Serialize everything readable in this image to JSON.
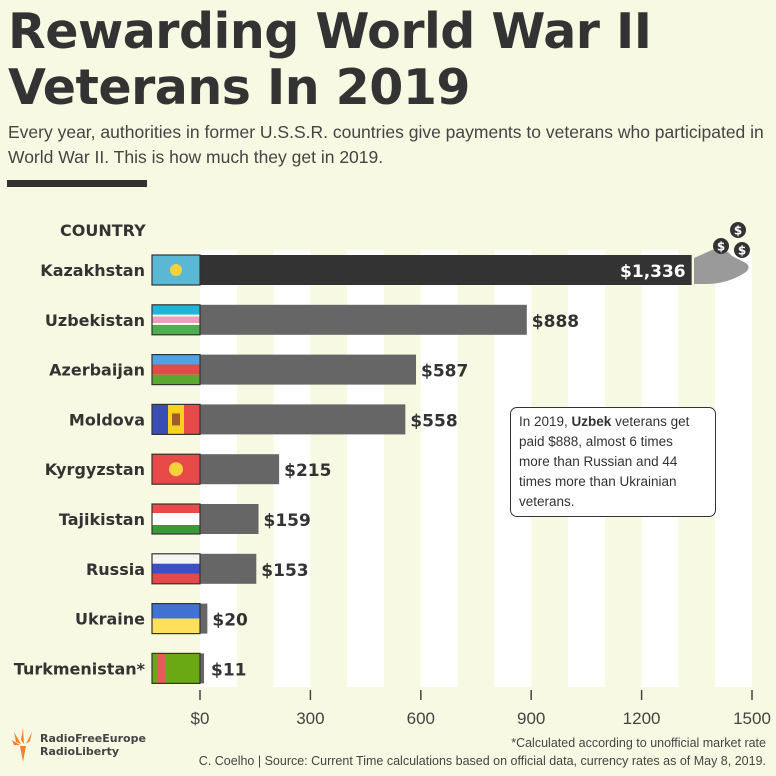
{
  "title": "Rewarding World War II Veterans In 2019",
  "subtitle": "Every year, authorities in former U.S.S.R. countries give payments to veterans who participated in World War II. This is how much they get in 2019.",
  "chart_data": {
    "type": "bar",
    "orientation": "horizontal",
    "column_header": "COUNTRY",
    "categories": [
      "Kazakhstan",
      "Uzbekistan",
      "Azerbaijan",
      "Moldova",
      "Kyrgyzstan",
      "Tajikistan",
      "Russia",
      "Ukraine",
      "Turkmenistan*"
    ],
    "values": [
      1336,
      888,
      587,
      558,
      215,
      159,
      153,
      20,
      11
    ],
    "value_labels": [
      "$1,336",
      "$888",
      "$587",
      "$558",
      "$215",
      "$159",
      "$153",
      "$20",
      "$11"
    ],
    "xlim": [
      0,
      1500
    ],
    "xticks": [
      0,
      300,
      600,
      900,
      1200,
      1500
    ],
    "xtick_labels": [
      "$0",
      "300",
      "600",
      "900",
      "1200",
      "1500"
    ],
    "highlight_color": "#333333",
    "bar_color": "#666666"
  },
  "annotation": {
    "pre": "In 2019, ",
    "bold": "Uzbek",
    "post": " veterans get paid $888, almost 6 times more than Russian and 44 times more than Ukrainian veterans."
  },
  "logo": {
    "line1": "RadioFreeEurope",
    "line2": "RadioLiberty"
  },
  "footnote": "*Calculated according to unofficial market rate",
  "credit": "C. Coelho | Source: Current Time calculations based on official data, currency rates as of May 8, 2019."
}
